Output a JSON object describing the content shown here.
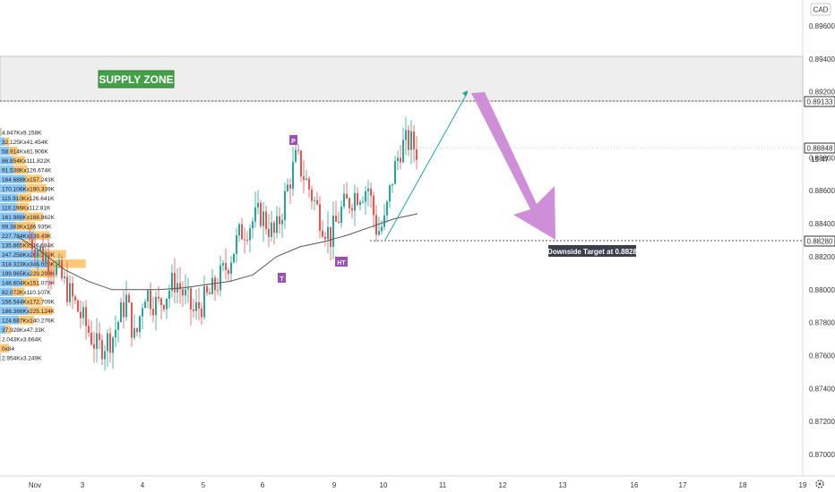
{
  "header": {
    "currency": "CAD"
  },
  "colors": {
    "bull": "#26a69a",
    "bear": "#ef5350",
    "ma": "#555555",
    "zone_fill": "#eeeeee",
    "zone_label_bg": "#43a047",
    "arrow": "#cf8fd8",
    "target_label_bg": "#3a3f4b",
    "marker_bg": "#9c4fb5",
    "vp_blue": "#64b5f6",
    "vp_orange": "#ffb74d"
  },
  "annotations": {
    "supply_zone": "SUPPLY ZONE",
    "downside_target": "Downside Target at 0.8828",
    "markers": [
      "P",
      "T",
      "HT"
    ]
  },
  "price_badges": {
    "zone_line": "0.89133",
    "last_price": "0.88848",
    "countdown": "15:47",
    "target_line": "0.88280"
  },
  "volume_profile": [
    "4.847Kx9.158K",
    "32.125Kx41.454K",
    "58.914Kx81.906K",
    "86.854Kx111.822K",
    "91.538Kx126.674K",
    "164.688Kx157.243K",
    "170.106Kx190.339K",
    "115.910Kx126.641K",
    "110.196Kx112.81K",
    "161.988Kx168.862K",
    "99.383Kx186.935K",
    "227.784Kx139.49K",
    "135.865Kx116.684K",
    "247.258Kx263.270K",
    "318.323Kx346.020K",
    "199.965Kx229.298K",
    "148.604Kx151.079K",
    "82.072Kx110.107K",
    "156.544Kx172.709K",
    "186.386Kx225.124K",
    "124.687Kx140.276K",
    "37.928Kx47.33K",
    "2.043Kx3.664K",
    "0x84",
    "2.954Kx3.249K"
  ],
  "chart_data": {
    "type": "candlestick",
    "symbol_currency": "CAD",
    "ylim": [
      0.869,
      0.897
    ],
    "y_ticks": [
      "0.87000",
      "0.87200",
      "0.87400",
      "0.87600",
      "0.87800",
      "0.88000",
      "0.88200",
      "0.88400",
      "0.88600",
      "0.88800",
      "0.89200",
      "0.89400",
      "0.89600"
    ],
    "x_ticks": [
      "Nov",
      "3",
      "4",
      "5",
      "6",
      "9",
      "10",
      "11",
      "12",
      "13",
      "16",
      "17",
      "18",
      "19"
    ],
    "supply_zone": [
      0.8914,
      0.894
    ],
    "target_level": 0.8828,
    "last_price": 0.88848,
    "ma_series": [
      0.8832,
      0.8823,
      0.8812,
      0.8805,
      0.88,
      0.88,
      0.88,
      0.8801,
      0.8803,
      0.8805,
      0.8809,
      0.882,
      0.8826,
      0.8829,
      0.8833,
      0.8838,
      0.8843,
      0.8846
    ],
    "projection": [
      [
        0.8828,
        0.892
      ],
      [
        0.892,
        0.8828
      ]
    ]
  }
}
